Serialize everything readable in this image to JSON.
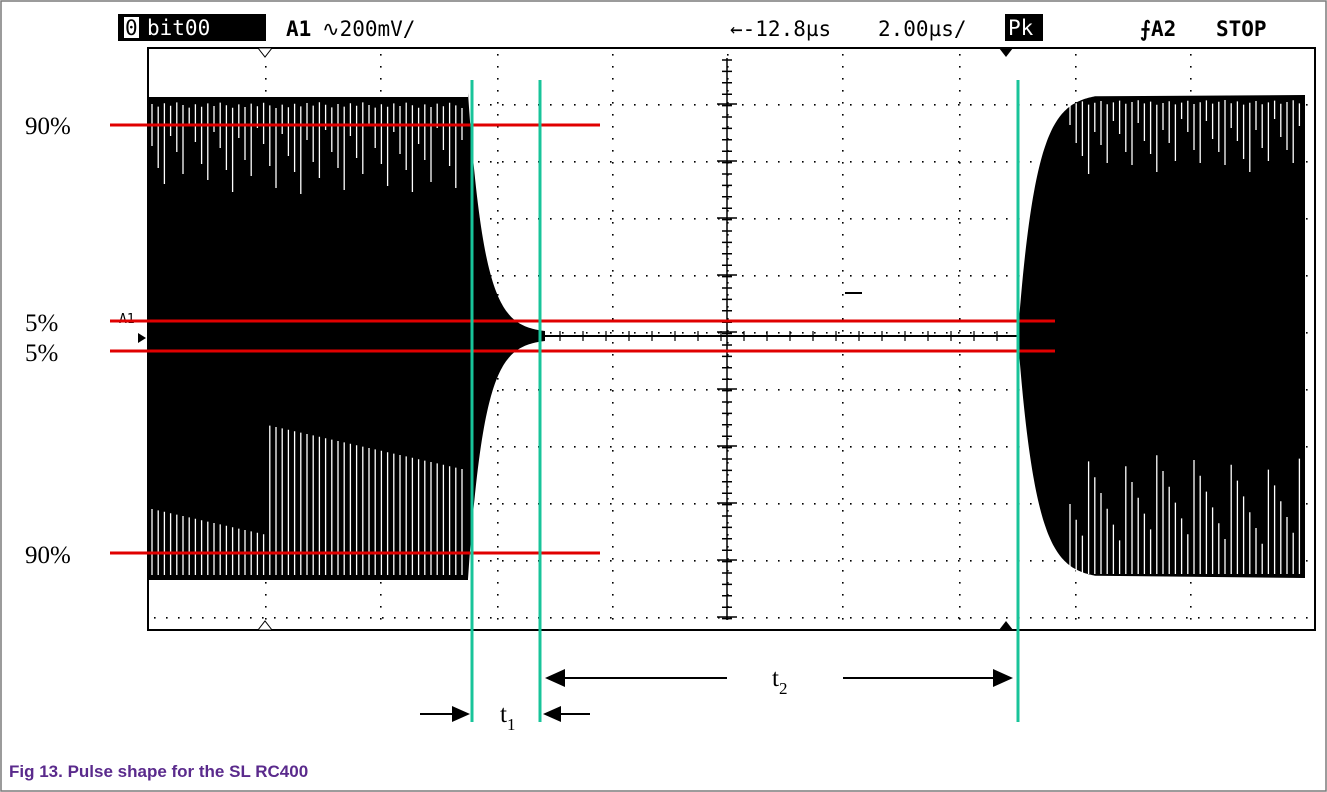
{
  "scope_header": {
    "channel_badge_num": "0",
    "channel_badge_name": "bit00",
    "channel": "A1",
    "volts_div": "∿200mV/",
    "position": "←-12.8µs",
    "time_div": "2.00µs/",
    "mode_badge": "Pk",
    "trigger": "⨍A2",
    "status": "STOP"
  },
  "level_labels": {
    "top_90": "90%",
    "upper_5": "5%",
    "lower_5": "5%",
    "bottom_90": "90%"
  },
  "ground_marker": "A1",
  "timing": {
    "t1": "t",
    "t1_sub": "1",
    "t2": "t",
    "t2_sub": "2"
  },
  "caption": "Fig 13.  Pulse shape for the SL RC400",
  "colors": {
    "reference_line": "#e00000",
    "cursor_line": "#18c49a",
    "caption": "#5a2a8c",
    "trace": "#000000"
  }
}
